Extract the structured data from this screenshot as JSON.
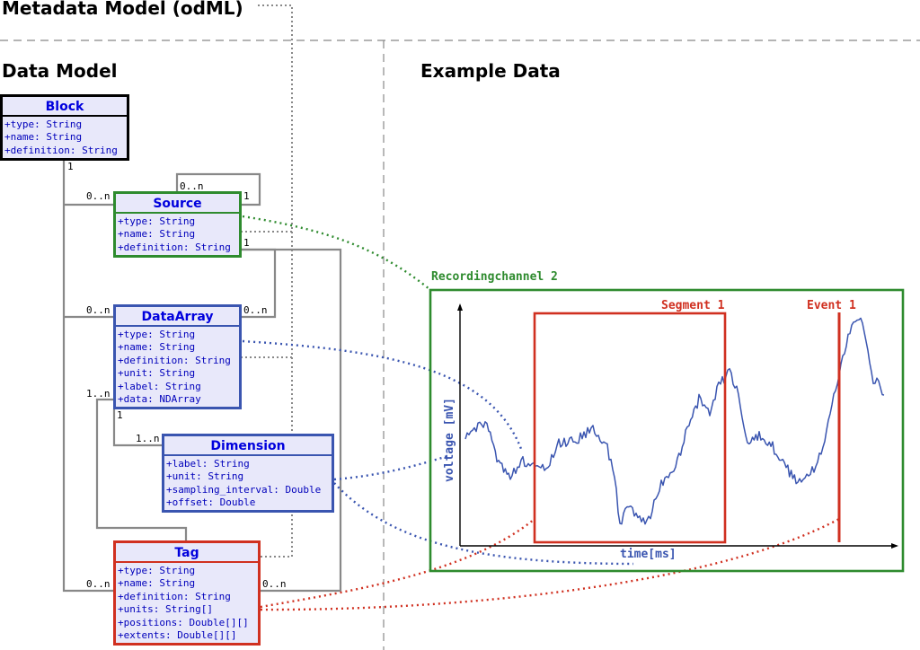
{
  "titles": {
    "metadata_model": "Metadata Model (odML)",
    "data_model": "Data Model",
    "example_data": "Example Data"
  },
  "classes": {
    "block": {
      "name": "Block",
      "attrs": [
        "+type: String",
        "+name: String",
        "+definition: String"
      ],
      "color": "#000000"
    },
    "source": {
      "name": "Source",
      "attrs": [
        "+type: String",
        "+name: String",
        "+definition: String"
      ],
      "color": "#2e8b2e"
    },
    "dataarray": {
      "name": "DataArray",
      "attrs": [
        "+type: String",
        "+name: String",
        "+definition: String",
        "+unit: String",
        "+label: String",
        "+data: NDArray"
      ],
      "color": "#3a55b0"
    },
    "dimension": {
      "name": "Dimension",
      "attrs": [
        "+label: String",
        "+unit: String",
        "+sampling_interval: Double",
        "+offset: Double"
      ],
      "color": "#3a55b0"
    },
    "tag": {
      "name": "Tag",
      "attrs": [
        "+type: String",
        "+name: String",
        "+definition: String",
        "+units: String[]",
        "+positions: Double[][]",
        "+extents: Double[][]"
      ],
      "color": "#d03020"
    }
  },
  "multiplicities": {
    "block_bottom": "1",
    "source_self_top": "0..n",
    "source_self_right": "1",
    "source_left": "0..n",
    "source_right": "1",
    "dataarray_left": "0..n",
    "dataarray_right": "0..n",
    "dataarray_leftlow": "1..n",
    "dataarray_bottom": "1",
    "dimension_left": "1..n",
    "tag_left": "0..n",
    "tag_right": "0..n"
  },
  "example": {
    "recording_channel": "Recordingchannel 2",
    "segment": "Segment 1",
    "event": "Event 1",
    "ylabel": "voltage [mV]",
    "xlabel": "time[ms]"
  },
  "colors": {
    "green": "#2e8b2e",
    "blue": "#3a55b0",
    "red": "#d03020",
    "gray": "#888888",
    "class_fill": "#e8e8fa"
  }
}
